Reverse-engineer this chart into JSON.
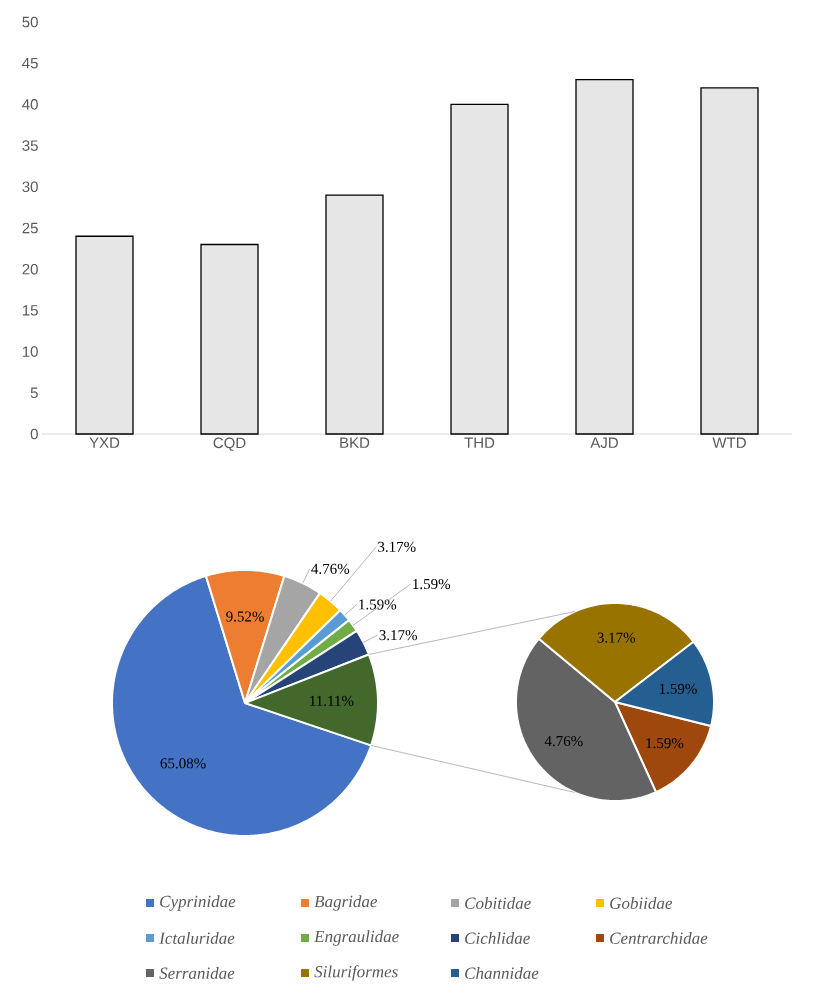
{
  "chart_data": [
    {
      "type": "bar",
      "categories": [
        "YXD",
        "CQD",
        "BKD",
        "THD",
        "AJD",
        "WTD"
      ],
      "values": [
        24,
        23,
        29,
        40,
        43,
        42
      ],
      "color": "#e7e6e6",
      "ylim": [
        0,
        50
      ],
      "yticks": [
        0,
        5,
        10,
        15,
        20,
        25,
        30,
        35,
        40,
        45,
        50
      ]
    },
    {
      "type": "pie",
      "categories": [
        "Cyprinidae",
        "Bagridae",
        "Cobitidae",
        "Gobiidae",
        "Ictaluridae",
        "Engraulidae",
        "Cichlidae",
        null
      ],
      "values": [
        65.08,
        9.52,
        4.76,
        3.17,
        1.59,
        1.59,
        3.17,
        11.11
      ],
      "value_labels": [
        "65.08%",
        "9.52%",
        "4.76%",
        "3.17%",
        "1.59%",
        "1.59%",
        "3.17%",
        "11.11%"
      ],
      "colors": [
        "#4472c4",
        "#ed7d31",
        "#a5a5a5",
        "#ffc000",
        "#5b9bd5",
        "#70ad47",
        "#264478",
        "#43682b"
      ],
      "legend": "bottom"
    },
    {
      "type": "pie",
      "categories": [
        "Centrarchidae",
        "Serranidae",
        "Siluriformes",
        "Channidae"
      ],
      "values": [
        1.59,
        4.76,
        3.17,
        1.59
      ],
      "value_labels": [
        "1.59%",
        "4.76%",
        "3.17%",
        "1.59%"
      ],
      "colors": [
        "#9e480e",
        "#636363",
        "#997300",
        "#255e91"
      ],
      "legend": "bottom"
    }
  ]
}
